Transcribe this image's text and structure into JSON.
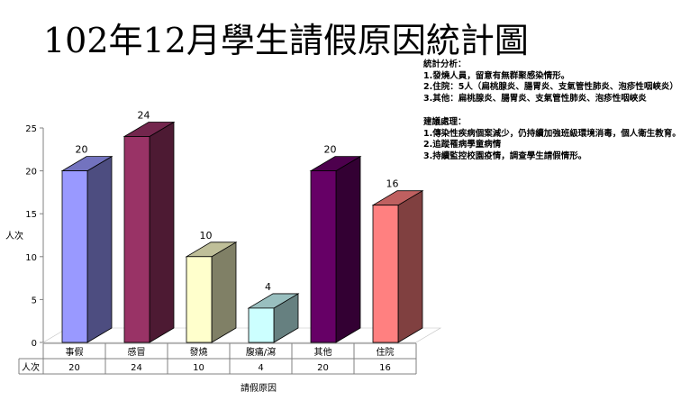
{
  "title": "102年12月學生請假原因統計圖",
  "analysis": {
    "heading": "統計分析：",
    "lines": [
      "1.發燒人員，留意有無群聚感染情形。",
      "2.住院：5人（扁桃腺炎、腸胃炎、支氣管性肺炎、泡疹性咽峽炎）",
      "3.其他：扁桃腺炎、腸胃炎、支氣管性肺炎、泡疹性咽峽炎"
    ]
  },
  "suggestions": {
    "heading": "建議處理：",
    "lines": [
      "1.傳染性疾病個案減少，仍持續加強班級環境消毒，個人衛生教育。",
      "2.追蹤罹病學童病情",
      "3.持續監控校園疫情，調查學生請假情形。"
    ]
  },
  "chart_data": {
    "type": "bar",
    "categories": [
      "事假",
      "感冒",
      "發燒",
      "腹痛/瀉",
      "其他",
      "住院"
    ],
    "series": [
      {
        "name": "人次",
        "values": [
          20,
          24,
          10,
          4,
          20,
          16
        ]
      }
    ],
    "ylabel": "人次",
    "xlabel": "請假原因",
    "ylim": [
      0,
      25
    ],
    "yticks": [
      0,
      5,
      10,
      15,
      20,
      25
    ],
    "table_row_label": "人次",
    "colors": {
      "front": [
        "#9999ff",
        "#993366",
        "#ffffcc",
        "#ccffff",
        "#660066",
        "#ff8080"
      ],
      "side": [
        "#4d4d80",
        "#4d1a33",
        "#808066",
        "#668080",
        "#330033",
        "#804040"
      ],
      "top": [
        "#7373bf",
        "#73264d",
        "#bfbf99",
        "#99bfbf",
        "#4d004d",
        "#bf6060"
      ]
    }
  }
}
